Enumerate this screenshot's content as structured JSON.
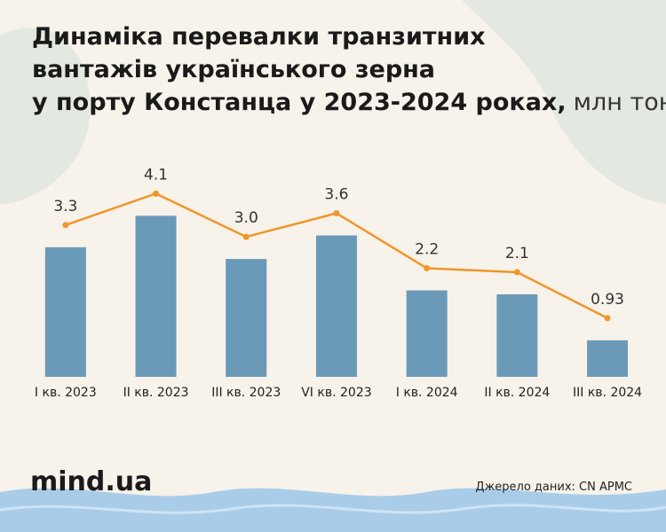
{
  "chart_data": {
    "type": "bar",
    "title": "Динаміка перевалки транзитних вантажів українського зерна у порту Констанца у 2023-2024 роках,",
    "unit": "млн тонн",
    "categories": [
      "I кв. 2023",
      "II кв. 2023",
      "III кв. 2023",
      "VI кв. 2023",
      "I кв. 2024",
      "II кв. 2024",
      "III кв. 2024"
    ],
    "values": [
      3.3,
      4.1,
      3,
      3.6,
      2.2,
      2.1,
      0.93
    ],
    "value_labels": [
      "3.3",
      "4.1",
      "3.0",
      "3.6",
      "2.2",
      "2.1",
      "0.93"
    ],
    "color": "#6a9ab8",
    "line_color": "#f0962a",
    "line": true,
    "source": "Джерело даних: CN APMC",
    "logo": "mind.ua"
  }
}
